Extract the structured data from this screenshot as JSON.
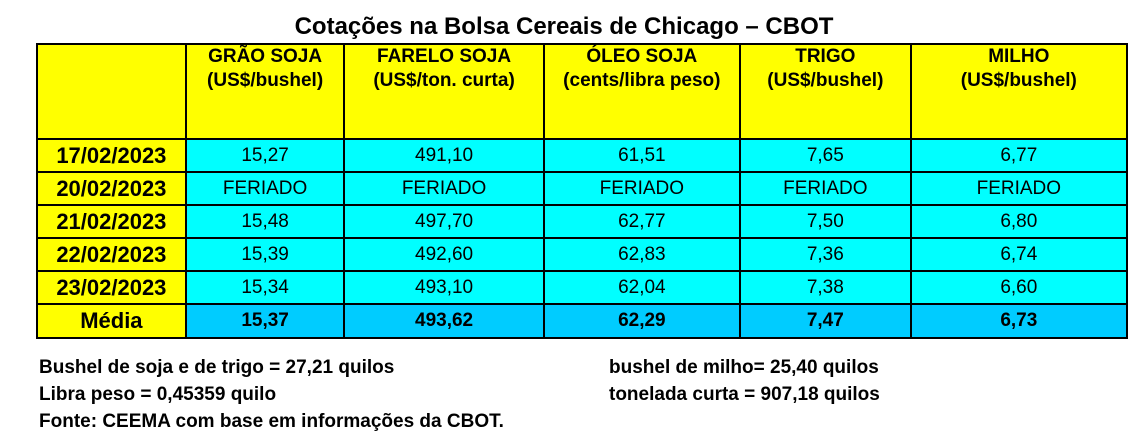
{
  "title": "Cotações na Bolsa Cereais de Chicago – CBOT",
  "columns": [
    {
      "name": "GRÃO SOJA",
      "unit": "(US$/bushel)"
    },
    {
      "name": "FARELO SOJA",
      "unit": "(US$/ton. curta)"
    },
    {
      "name": "ÓLEO SOJA",
      "unit": "(cents/libra peso)"
    },
    {
      "name": "TRIGO",
      "unit": "(US$/bushel)"
    },
    {
      "name": "MILHO",
      "unit": "(US$/bushel)"
    }
  ],
  "rows": [
    {
      "date": "17/02/2023",
      "values": [
        "15,27",
        "491,10",
        "61,51",
        "7,65",
        "6,77"
      ]
    },
    {
      "date": "20/02/2023",
      "values": [
        "FERIADO",
        "FERIADO",
        "FERIADO",
        "FERIADO",
        "FERIADO"
      ]
    },
    {
      "date": "21/02/2023",
      "values": [
        "15,48",
        "497,70",
        "62,77",
        "7,50",
        "6,80"
      ]
    },
    {
      "date": "22/02/2023",
      "values": [
        "15,39",
        "492,60",
        "62,83",
        "7,36",
        "6,74"
      ]
    },
    {
      "date": "23/02/2023",
      "values": [
        "15,34",
        "493,10",
        "62,04",
        "7,38",
        "6,60"
      ]
    }
  ],
  "average": {
    "label": "Média",
    "values": [
      "15,37",
      "493,62",
      "62,29",
      "7,47",
      "6,73"
    ]
  },
  "notes": {
    "bushel_soja_trigo": "Bushel de soja e de trigo = 27,21 quilos",
    "bushel_milho": "bushel de milho= 25,40 quilos",
    "libra_peso": "Libra peso = 0,45359 quilo",
    "tonelada_curta": "tonelada curta = 907,18 quilos",
    "fonte": "Fonte: CEEMA com base em informações da CBOT."
  },
  "colors": {
    "header_bg": "#ffff00",
    "cell_bg": "#00ffff",
    "average_bg": "#00ccff"
  }
}
